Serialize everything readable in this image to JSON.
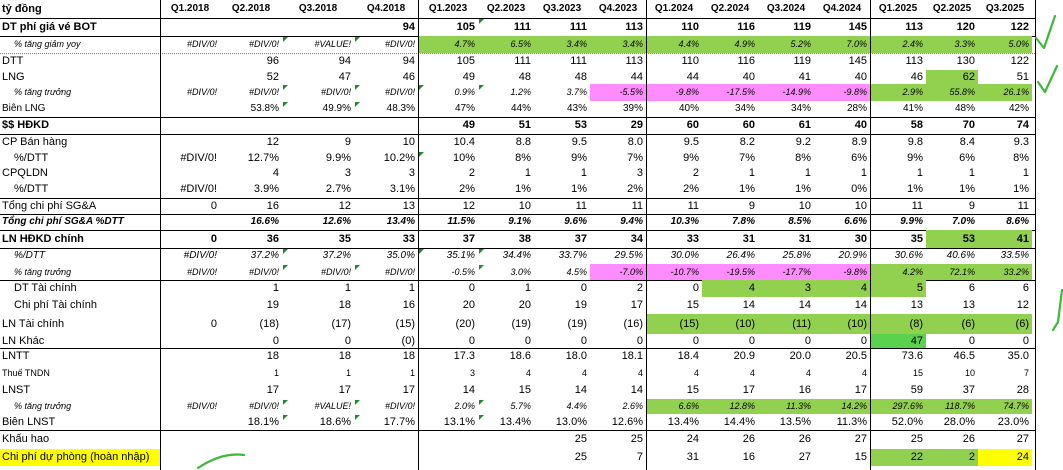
{
  "sheet": {
    "header": [
      "tỷ đồng",
      "Q1.2018",
      "Q2.2018",
      "Q3.2018",
      "Q4.2018",
      "Q1.2023",
      "Q2.2023",
      "Q3.2023",
      "Q4.2023",
      "Q1.2024",
      "Q2.2024",
      "Q3.2024",
      "Q4.2024",
      "Q1.2025",
      "Q2.2025",
      "Q3.2025"
    ],
    "rows": [
      {
        "label": "DT phí giá vé BOT",
        "cells": [
          "",
          "",
          "",
          "94",
          "105",
          "111",
          "111",
          "113",
          "110",
          "116",
          "119",
          "145",
          "113",
          "120",
          "122"
        ]
      },
      {
        "label": "% tăng giảm yoy",
        "cells": [
          "#DIV/0!",
          "#DIV/0!",
          "#VALUE!",
          "#DIV/0!",
          "4.7%",
          "6.5%",
          "3.4%",
          "3.4%",
          "4.4%",
          "4.9%",
          "5.2%",
          "7.0%",
          "2.4%",
          "3.3%",
          "5.0%"
        ]
      },
      {
        "label": "DTT",
        "cells": [
          "",
          "96",
          "94",
          "94",
          "105",
          "111",
          "111",
          "113",
          "110",
          "116",
          "119",
          "145",
          "113",
          "130",
          "122"
        ]
      },
      {
        "label": "LNG",
        "cells": [
          "",
          "52",
          "47",
          "46",
          "49",
          "48",
          "48",
          "44",
          "44",
          "40",
          "41",
          "40",
          "46",
          "62",
          "51"
        ]
      },
      {
        "label": "% tăng trưởng",
        "cells": [
          "#DIV/0!",
          "#DIV/0!",
          "#DIV/0!",
          "#DIV/0!",
          "0.9%",
          "1.2%",
          "3.7%",
          "-5.5%",
          "-9.8%",
          "-17.5%",
          "-14.9%",
          "-9.8%",
          "2.9%",
          "55.8%",
          "26.1%"
        ]
      },
      {
        "label": "Biên LNG",
        "cells": [
          "",
          "53.8%",
          "49.9%",
          "48.3%",
          "47%",
          "44%",
          "43%",
          "39%",
          "40%",
          "34%",
          "34%",
          "28%",
          "41%",
          "48%",
          "42%"
        ]
      },
      {
        "label": "$$ HĐKD",
        "cells": [
          "",
          "",
          "",
          "",
          "49",
          "51",
          "53",
          "29",
          "60",
          "60",
          "61",
          "40",
          "58",
          "70",
          "74"
        ]
      },
      {
        "label": "CP Bán hàng",
        "cells": [
          "",
          "12",
          "9",
          "10",
          "10.4",
          "8.8",
          "9.5",
          "8.0",
          "9.5",
          "8.2",
          "9.2",
          "8.9",
          "9.8",
          "8.4",
          "9.3"
        ]
      },
      {
        "label": "%/DTT",
        "cells": [
          "#DIV/0!",
          "12.7%",
          "9.9%",
          "10.2%",
          "10%",
          "8%",
          "9%",
          "7%",
          "9%",
          "7%",
          "8%",
          "6%",
          "9%",
          "6%",
          "8%"
        ]
      },
      {
        "label": "CPQLDN",
        "cells": [
          "",
          "4",
          "3",
          "3",
          "2",
          "1",
          "1",
          "3",
          "2",
          "1",
          "1",
          "1",
          "1",
          "1",
          "1"
        ]
      },
      {
        "label": "%/DTT",
        "cells": [
          "#DIV/0!",
          "3.9%",
          "2.7%",
          "3.1%",
          "2%",
          "1%",
          "1%",
          "2%",
          "2%",
          "1%",
          "1%",
          "0%",
          "1%",
          "1%",
          "1%"
        ]
      },
      {
        "label": "Tổng chi phí SG&A",
        "cells": [
          "0",
          "16",
          "12",
          "13",
          "12",
          "10",
          "11",
          "11",
          "11",
          "9",
          "10",
          "10",
          "11",
          "9",
          "11"
        ]
      },
      {
        "label": "Tổng chi phí SG&A %DTT",
        "cells": [
          "",
          "16.6%",
          "12.6%",
          "13.4%",
          "11.5%",
          "9.1%",
          "9.6%",
          "9.4%",
          "10.3%",
          "7.8%",
          "8.5%",
          "6.6%",
          "9.9%",
          "7.0%",
          "8.6%"
        ]
      },
      {
        "label": "LN HĐKD chính",
        "cells": [
          "0",
          "36",
          "35",
          "33",
          "37",
          "38",
          "37",
          "34",
          "33",
          "31",
          "31",
          "30",
          "35",
          "53",
          "41"
        ]
      },
      {
        "label": "%/DTT",
        "cells": [
          "#DIV/0!",
          "37.2%",
          "37.2%",
          "35.0%",
          "35.1%",
          "34.4%",
          "33.7%",
          "29.5%",
          "30.0%",
          "26.4%",
          "25.8%",
          "20.9%",
          "30.6%",
          "40.6%",
          "33.5%"
        ]
      },
      {
        "label": "% tăng trưởng",
        "cells": [
          "#DIV/0!",
          "#DIV/0!",
          "#DIV/0!",
          "#DIV/0!",
          "-0.5%",
          "3.0%",
          "4.5%",
          "-7.0%",
          "-10.7%",
          "-19.5%",
          "-17.7%",
          "-9.8%",
          "4.2%",
          "72.1%",
          "33.2%"
        ]
      },
      {
        "label": "DT Tài chính",
        "cells": [
          "",
          "1",
          "1",
          "1",
          "0",
          "1",
          "0",
          "2",
          "0",
          "4",
          "3",
          "4",
          "5",
          "6",
          "6"
        ]
      },
      {
        "label": "Chi phí Tài chính",
        "cells": [
          "",
          "19",
          "18",
          "16",
          "20",
          "20",
          "19",
          "17",
          "15",
          "14",
          "14",
          "14",
          "13",
          "13",
          "12"
        ]
      },
      {
        "label": "LN Tài chính",
        "cells": [
          "0",
          "(18)",
          "(17)",
          "(15)",
          "(20)",
          "(19)",
          "(19)",
          "(16)",
          "(15)",
          "(10)",
          "(11)",
          "(10)",
          "(8)",
          "(6)",
          "(6)"
        ]
      },
      {
        "label": "LN Khác",
        "cells": [
          "",
          "0",
          "0",
          "(0)",
          "0",
          "0",
          "0",
          "0",
          "0",
          "0",
          "0",
          "0",
          "47",
          "0",
          "0"
        ]
      },
      {
        "label": "LNTT",
        "cells": [
          "",
          "18",
          "18",
          "18",
          "17.3",
          "18.6",
          "18.0",
          "18.1",
          "18.4",
          "20.9",
          "20.0",
          "20.5",
          "73.6",
          "46.5",
          "35.0"
        ]
      },
      {
        "label": "Thuế TNDN",
        "cells": [
          "",
          "1",
          "1",
          "1",
          "3",
          "4",
          "4",
          "4",
          "4",
          "4",
          "4",
          "4",
          "15",
          "10",
          "7"
        ]
      },
      {
        "label": "LNST",
        "cells": [
          "",
          "17",
          "17",
          "17",
          "14",
          "15",
          "14",
          "14",
          "15",
          "17",
          "16",
          "17",
          "59",
          "37",
          "28"
        ]
      },
      {
        "label": "% tăng trưởng",
        "cells": [
          "#DIV/0!",
          "#DIV/0!",
          "#VALUE!",
          "#DIV/0!",
          "2.0%",
          "5.7%",
          "4.4%",
          "2.6%",
          "6.6%",
          "12.8%",
          "11.3%",
          "14.2%",
          "297.6%",
          "118.7%",
          "74.7%"
        ]
      },
      {
        "label": "Biên LNST",
        "cells": [
          "",
          "18.1%",
          "18.6%",
          "17.7%",
          "13.1%",
          "13.4%",
          "13.0%",
          "12.6%",
          "13.4%",
          "14.4%",
          "13.5%",
          "11.3%",
          "52.0%",
          "28.0%",
          "23.0%"
        ]
      },
      {
        "label": "Khấu hao",
        "cells": [
          "",
          "",
          "",
          "",
          "",
          "",
          "25",
          "25",
          "24",
          "26",
          "26",
          "27",
          "25",
          "26",
          "27"
        ]
      },
      {
        "label": "Chi phí dự phòng (hoàn nhập)",
        "cells": [
          "",
          "",
          "",
          "",
          "",
          "",
          "25",
          "7",
          "31",
          "16",
          "27",
          "15",
          "22",
          "2",
          "24"
        ]
      }
    ]
  },
  "colors": {
    "green": "#92d050",
    "bright_green": "#5bd24e",
    "pink": "#ff8cff",
    "yellow": "#ffff00",
    "ink": "#3db83a",
    "triangle": "#1e8a2e"
  }
}
